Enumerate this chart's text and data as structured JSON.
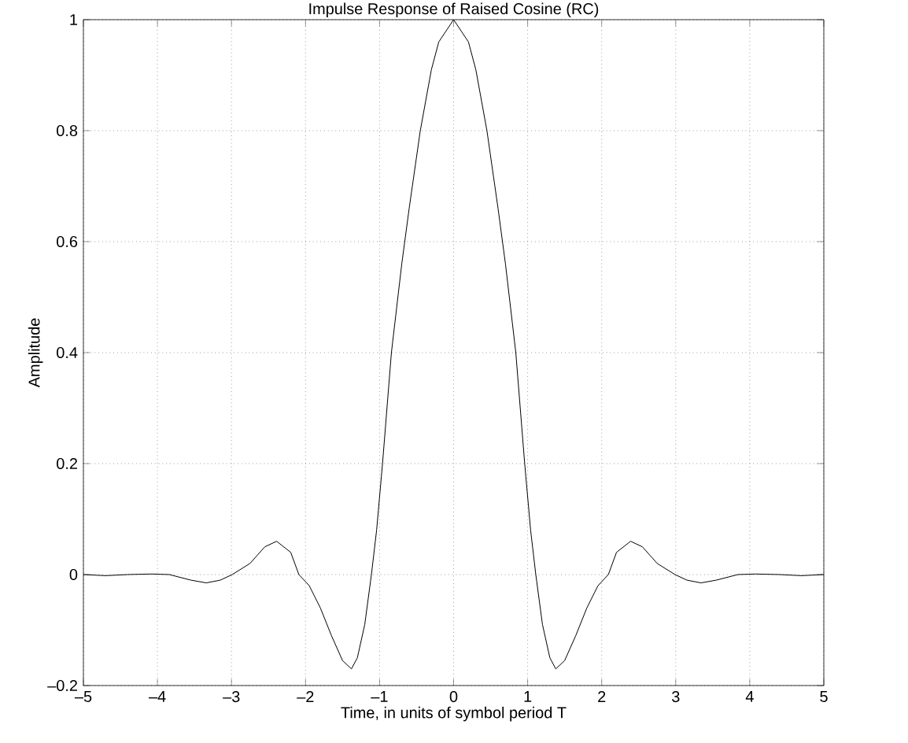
{
  "chart_data": {
    "type": "line",
    "title": "Impulse Response of Raised Cosine (RC)",
    "xlabel": "Time, in units of symbol period T",
    "ylabel": "Amplitude",
    "series": [
      {
        "color": "#000000",
        "x": [
          -5,
          -4.7,
          -4.4,
          -4.08,
          -3.84,
          -3.55,
          -3.34,
          -3.15,
          -2.99,
          -2.75,
          -2.55,
          -2.39,
          -2.2,
          -2.09,
          -1.95,
          -1.8,
          -1.65,
          -1.5,
          -1.38,
          -1.3,
          -1.2,
          -1.11,
          -1.04,
          -0.96,
          -0.84,
          -0.7,
          -0.6,
          -0.45,
          -0.3,
          -0.2,
          0,
          0.2,
          0.3,
          0.45,
          0.6,
          0.7,
          0.84,
          0.96,
          1.04,
          1.11,
          1.2,
          1.3,
          1.38,
          1.5,
          1.65,
          1.8,
          1.95,
          2.09,
          2.2,
          2.39,
          2.55,
          2.75,
          2.99,
          3.15,
          3.34,
          3.55,
          3.84,
          4.08,
          4.4,
          4.7,
          5
        ],
        "values": [
          0,
          -0.002,
          0,
          0.001,
          0,
          -0.01,
          -0.015,
          -0.01,
          0,
          0.02,
          0.05,
          0.06,
          0.04,
          0,
          -0.02,
          -0.06,
          -0.11,
          -0.155,
          -0.17,
          -0.15,
          -0.09,
          0,
          0.08,
          0.2,
          0.4,
          0.56,
          0.66,
          0.8,
          0.91,
          0.96,
          1,
          0.96,
          0.91,
          0.8,
          0.66,
          0.56,
          0.4,
          0.2,
          0.08,
          0,
          -0.09,
          -0.15,
          -0.17,
          -0.155,
          -0.11,
          -0.06,
          -0.02,
          0,
          0.04,
          0.06,
          0.05,
          0.02,
          0,
          -0.01,
          -0.015,
          -0.01,
          0,
          0.001,
          0,
          -0.002,
          0
        ]
      }
    ],
    "xlim": [
      -5,
      5
    ],
    "ylim": [
      -0.2,
      1
    ],
    "xticks": [
      {
        "value": -5,
        "label": "–5"
      },
      {
        "value": -4,
        "label": "–4"
      },
      {
        "value": -3,
        "label": "–3"
      },
      {
        "value": -2,
        "label": "–2"
      },
      {
        "value": -1,
        "label": "–1"
      },
      0,
      1,
      2,
      3,
      4,
      5
    ],
    "yticks": [
      {
        "value": -0.2,
        "label": "–0.2"
      },
      0,
      0.2,
      0.4,
      0.6,
      0.8,
      1
    ],
    "grid": true,
    "line_style": "solid",
    "marker": "none"
  }
}
